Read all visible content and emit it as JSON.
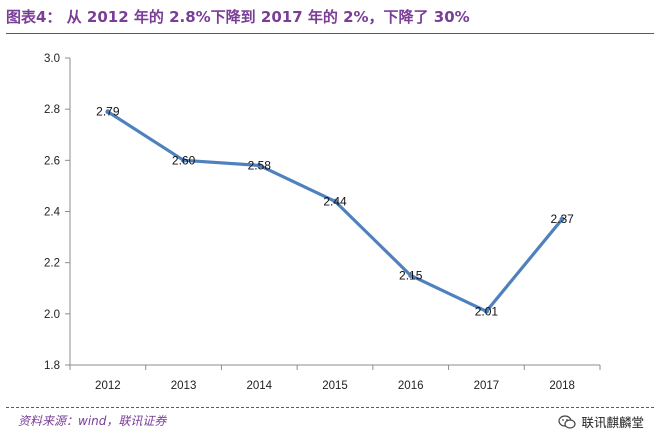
{
  "title": "图表4：  从 2012 年的 2.8%下降到 2017 年的 2%，下降了 30%",
  "source": "资料来源：wind，联讯证券",
  "watermark": "联讯麒麟堂",
  "colors": {
    "accent": "#7a3e96",
    "line": "#4f81bd",
    "axis": "#8c8c8c"
  },
  "chart_data": {
    "type": "line",
    "categories": [
      "2012",
      "2013",
      "2014",
      "2015",
      "2016",
      "2017",
      "2018"
    ],
    "series": [
      {
        "values": [
          2.79,
          2.6,
          2.58,
          2.44,
          2.15,
          2.01,
          2.37
        ]
      }
    ],
    "data_labels": [
      "2.79",
      "2.60",
      "2.58",
      "2.44",
      "2.15",
      "2.01",
      "2.37"
    ],
    "yticks": [
      "1.8",
      "2.0",
      "2.2",
      "2.4",
      "2.6",
      "2.8",
      "3.0"
    ],
    "ylim": [
      1.8,
      3.0
    ],
    "grid": false,
    "legend": "none"
  }
}
